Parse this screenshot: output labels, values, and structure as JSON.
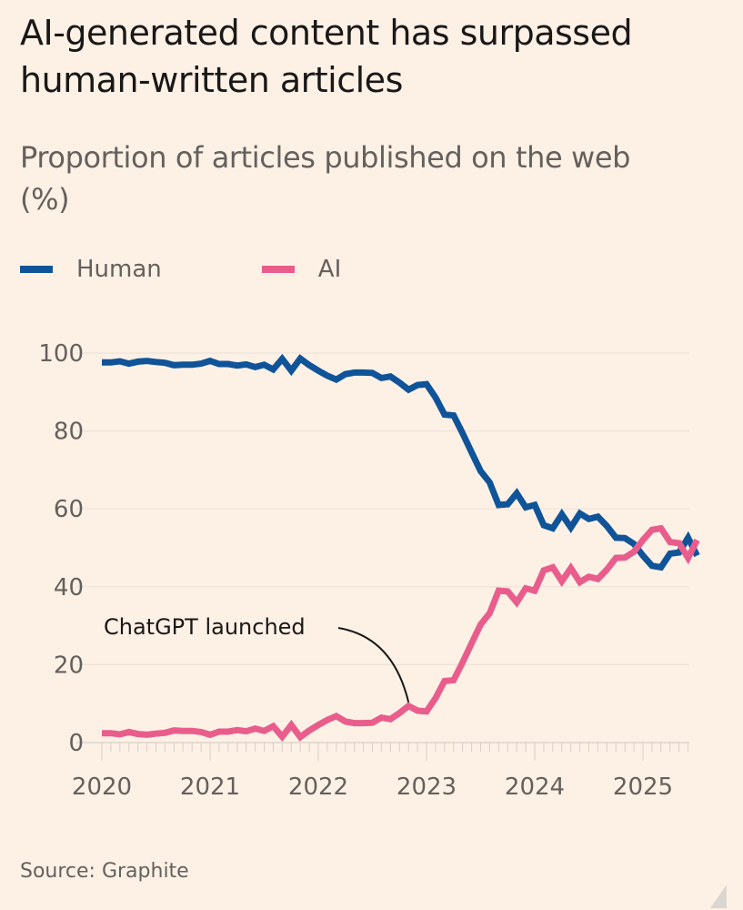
{
  "header": {
    "title": "AI-generated content has surpassed human-written articles",
    "subtitle": "Proportion of articles published on the web (%)"
  },
  "legend": [
    {
      "label": "Human",
      "color": "#0f5499"
    },
    {
      "label": "AI",
      "color": "#e95d8c"
    }
  ],
  "footer": {
    "source": "Source: Graphite"
  },
  "chart_data": {
    "type": "line",
    "title": "AI-generated content has surpassed human-written articles",
    "subtitle": "Proportion of articles published on the web (%)",
    "xlabel": "",
    "ylabel": "",
    "x_start": "2020-01",
    "x_step": "month",
    "xlim": [
      2020.0,
      2025.42
    ],
    "ylim": [
      0,
      100
    ],
    "yticks": [
      0,
      20,
      40,
      60,
      80,
      100
    ],
    "xticks": [
      {
        "value": 2020,
        "label": "2020"
      },
      {
        "value": 2021,
        "label": "2021"
      },
      {
        "value": 2022,
        "label": "2022"
      },
      {
        "value": 2023,
        "label": "2023"
      },
      {
        "value": 2024,
        "label": "2024"
      },
      {
        "value": 2025,
        "label": "2025"
      }
    ],
    "grid": true,
    "legend_position": "top-left",
    "series": [
      {
        "name": "Human",
        "color": "#0f5499",
        "values": [
          97.6,
          97.6,
          97.9,
          97.3,
          97.8,
          98.0,
          97.7,
          97.5,
          96.9,
          97.0,
          97.0,
          97.3,
          98.0,
          97.2,
          97.2,
          96.8,
          97.1,
          96.4,
          97.0,
          95.8,
          98.5,
          95.5,
          98.6,
          96.9,
          95.5,
          94.2,
          93.2,
          94.6,
          95.0,
          95.0,
          94.9,
          93.6,
          94.0,
          92.4,
          90.6,
          91.8,
          92.0,
          88.6,
          84.2,
          84.0,
          79.4,
          74.5,
          69.7,
          66.8,
          61.0,
          61.2,
          64.0,
          60.4,
          61.0,
          55.8,
          55.0,
          58.6,
          55.2,
          58.8,
          57.4,
          58.0,
          55.6,
          52.6,
          52.5,
          51.0,
          48.0,
          45.4,
          45.0,
          48.5,
          48.8,
          52.6,
          48.0
        ]
      },
      {
        "name": "AI",
        "color": "#e95d8c",
        "values": [
          2.4,
          2.4,
          2.1,
          2.7,
          2.2,
          2.0,
          2.3,
          2.5,
          3.1,
          3.0,
          3.0,
          2.7,
          2.0,
          2.8,
          2.8,
          3.2,
          2.9,
          3.6,
          3.0,
          4.2,
          1.5,
          4.5,
          1.4,
          3.1,
          4.5,
          5.8,
          6.8,
          5.4,
          5.0,
          5.0,
          5.1,
          6.4,
          6.0,
          7.6,
          9.4,
          8.2,
          8.0,
          11.4,
          15.8,
          16.0,
          20.6,
          25.5,
          30.3,
          33.2,
          39.0,
          38.8,
          36.0,
          39.6,
          39.0,
          44.2,
          45.0,
          41.4,
          44.8,
          41.2,
          42.6,
          42.0,
          44.4,
          47.4,
          47.5,
          49.0,
          52.0,
          54.6,
          55.0,
          51.5,
          51.2,
          47.4,
          52.0
        ]
      }
    ],
    "annotations": [
      {
        "text": "ChatGPT launched",
        "x": "2022-11",
        "series": "AI"
      }
    ]
  }
}
